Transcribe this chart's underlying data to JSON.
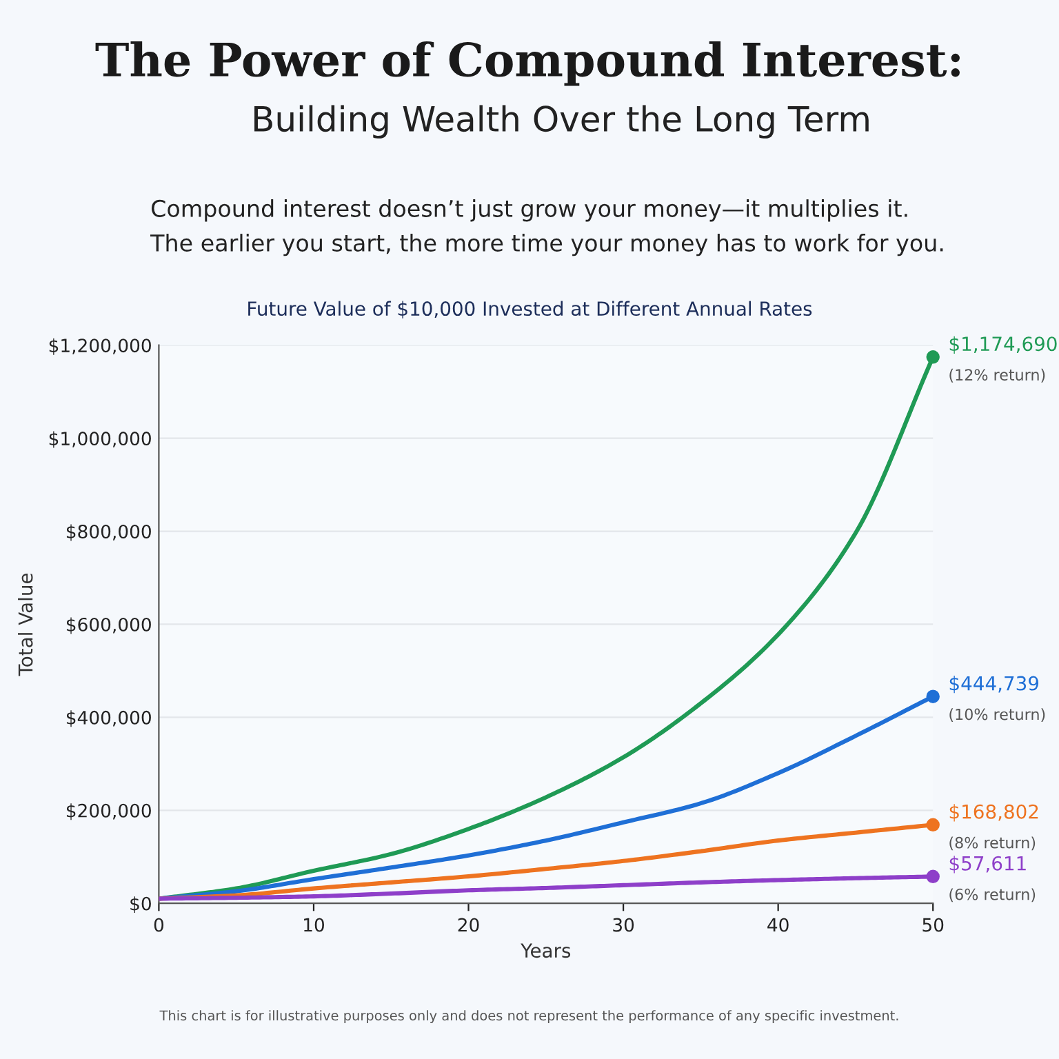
{
  "chart_data": {
    "type": "line",
    "title": "The Power of Compound Interest:",
    "subtitle": "Building Wealth Over the Long Term",
    "annotations": [
      "Compound interest doesn’t just grow your money—it multiplies it.\nThe earlier you start, the more time your money has to work for you.",
      "Future Value of $10,000 Invested at Different Annual Rates",
      "This chart is for illustrative purposes only and does not represent the performance of any specific investment.",
      "(12% return)",
      "(10% return)",
      "(8% return)",
      "(6% return)"
    ],
    "xlabel": "Years",
    "ylabel": "Total Value",
    "x": [
      0,
      5,
      10,
      15,
      20,
      25,
      30,
      35,
      40,
      45,
      50
    ],
    "series": [
      {
        "color": "#1f9a55",
        "values": [
          10000,
          32000,
          70000,
          106000,
          160000,
          228000,
          314000,
          430000,
          578000,
          796000,
          1174690
        ],
        "value_labels": [
          null,
          null,
          null,
          null,
          null,
          null,
          null,
          null,
          null,
          null,
          "$1,174,690"
        ]
      },
      {
        "color": "#1f6fd6",
        "values": [
          10000,
          26000,
          52000,
          77000,
          103000,
          135000,
          174000,
          215000,
          280000,
          360000,
          444739
        ],
        "value_labels": [
          null,
          null,
          null,
          null,
          null,
          null,
          null,
          null,
          null,
          null,
          "$444,739"
        ]
      },
      {
        "color": "#ee7320",
        "values": [
          10000,
          17000,
          32000,
          45000,
          58000,
          74000,
          91000,
          112000,
          135000,
          152000,
          168802
        ],
        "value_labels": [
          null,
          null,
          null,
          null,
          null,
          null,
          null,
          null,
          null,
          null,
          "$168,802"
        ]
      },
      {
        "color": "#8e3fc9",
        "values": [
          10000,
          12000,
          15000,
          21000,
          28000,
          33000,
          39000,
          45000,
          50000,
          54000,
          57611
        ],
        "value_labels": [
          null,
          null,
          null,
          null,
          null,
          null,
          null,
          null,
          null,
          null,
          "$57,611"
        ]
      }
    ],
    "xlim": [
      0,
      50
    ],
    "xticks": [
      0,
      10,
      20,
      30,
      40,
      50
    ],
    "ylim": [
      0,
      1200000
    ],
    "yticks": [
      {
        "value": 0,
        "label": "$0"
      },
      {
        "value": 200000,
        "label": "$200,000"
      },
      {
        "value": 400000,
        "label": "$400,000"
      },
      {
        "value": 600000,
        "label": "$600,000"
      },
      {
        "value": 800000,
        "label": "$800,000"
      },
      {
        "value": 1000000,
        "label": "$1,000,000"
      },
      {
        "value": 1200000,
        "label": "$1,200,000"
      }
    ],
    "grid": "y",
    "line_style": "solid"
  }
}
